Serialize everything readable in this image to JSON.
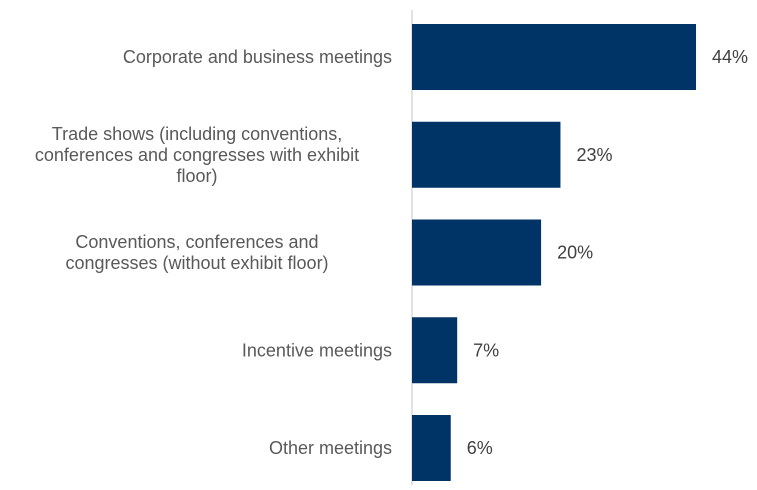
{
  "chart_data": {
    "type": "bar",
    "orientation": "horizontal",
    "categories": [
      "Corporate and business meetings",
      "Trade shows (including conventions, conferences and congresses with exhibit floor)",
      "Conventions, conferences and congresses (without exhibit floor)",
      "Incentive meetings",
      "Other meetings"
    ],
    "category_lines": [
      [
        "Corporate and business meetings"
      ],
      [
        "Trade shows (including conventions,",
        "conferences and congresses with exhibit",
        "floor)"
      ],
      [
        "Conventions, conferences and",
        "congresses (without exhibit floor)"
      ],
      [
        "Incentive meetings"
      ],
      [
        "Other meetings"
      ]
    ],
    "values": [
      44,
      23,
      20,
      7,
      6
    ],
    "value_labels": [
      "44%",
      "23%",
      "20%",
      "7%",
      "6%"
    ],
    "xlim": [
      0,
      44
    ],
    "title": "",
    "xlabel": "",
    "ylabel": "",
    "grid": false,
    "legend": "none",
    "colors": {
      "bar": "#003366",
      "axis": "#d9d9d9",
      "category_text": "#595959",
      "value_text": "#404040"
    }
  }
}
